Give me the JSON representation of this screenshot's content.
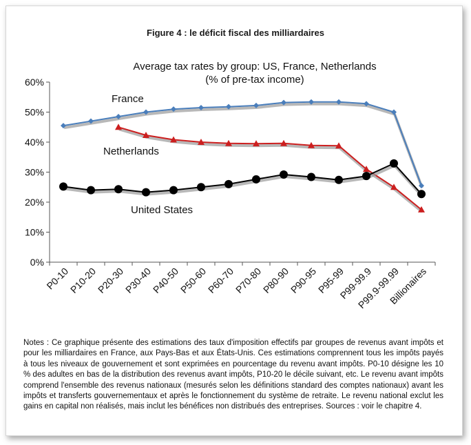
{
  "figure_title": "Figure 4 : le déficit fiscal des milliardaires",
  "chart_data": {
    "type": "line",
    "title": "Average tax rates by group: US, France, Netherlands",
    "subtitle": "(% of pre-tax income)",
    "xlabel": "",
    "ylabel": "",
    "ylim": [
      0,
      60
    ],
    "yticks": [
      0,
      10,
      20,
      30,
      40,
      50,
      60
    ],
    "ytick_labels": [
      "0%",
      "10%",
      "20%",
      "30%",
      "40%",
      "50%",
      "60%"
    ],
    "categories": [
      "P0-10",
      "P10-20",
      "P20-30",
      "P30-40",
      "P40-50",
      "P50-60",
      "P60-70",
      "P70-80",
      "P80-90",
      "P90-95",
      "P95-99",
      "P99-99.9",
      "P99.9-99.99",
      "Billionaires"
    ],
    "grid": false,
    "series": [
      {
        "name": "France",
        "color": "#4a7ebb",
        "marker": "diamond",
        "values": [
          45.5,
          47,
          48.5,
          50,
          51,
          51.5,
          51.8,
          52.2,
          53.2,
          53.4,
          53.4,
          52.8,
          50,
          25.5
        ]
      },
      {
        "name": "Netherlands",
        "color": "#cc1f1f",
        "marker": "triangle",
        "values": [
          null,
          null,
          45,
          42.3,
          40.8,
          40,
          39.6,
          39.5,
          39.6,
          38.9,
          38.8,
          31,
          25,
          17.5
        ]
      },
      {
        "name": "United States",
        "color": "#000000",
        "marker": "circle",
        "values": [
          25.2,
          24,
          24.3,
          23.3,
          24,
          25,
          26,
          27.6,
          29.2,
          28.4,
          27.4,
          28.7,
          32.9,
          22.7
        ]
      }
    ]
  },
  "notes": "Notes : Ce graphique présente des estimations des taux d'imposition effectifs par groupes de revenus avant impôts et pour les milliardaires en France, aux Pays-Bas et aux États-Unis. Ces estimations comprennent tous les impôts payés à tous les niveaux de gouvernement et sont exprimées en pourcentage du revenu avant impôts. P0-10 désigne les 10 % des adultes en bas de la distribution des revenus avant impôts, P10-20 le décile suivant, etc. Le revenu avant impôts comprend l'ensemble des revenus nationaux (mesurés selon les définitions standard des comptes nationaux) avant les impôts et transferts gouvernementaux et après le fonctionnement du système de retraite. Le revenu national exclut les gains en capital non réalisés, mais inclut les bénéfices non distribués des entreprises. Sources : voir le chapitre 4."
}
